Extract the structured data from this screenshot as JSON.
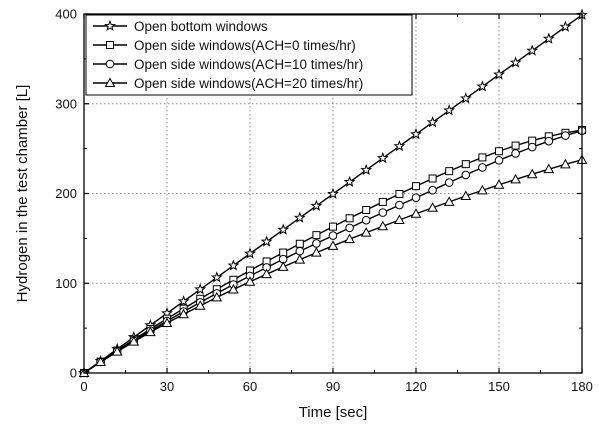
{
  "chart_data": {
    "type": "line",
    "title": "",
    "xlabel": "Time [sec]",
    "ylabel": "Hydrogen in the test chamber [L]",
    "xlim": [
      0,
      180
    ],
    "ylim": [
      0,
      400
    ],
    "xticks": [
      0,
      30,
      60,
      90,
      120,
      150,
      180
    ],
    "yticks": [
      0,
      100,
      200,
      300,
      400
    ],
    "grid": true,
    "grid_style": "dotted",
    "legend_position": "top-left",
    "x": [
      0,
      6,
      12,
      18,
      24,
      30,
      36,
      42,
      48,
      54,
      60,
      66,
      72,
      78,
      84,
      90,
      96,
      102,
      108,
      114,
      120,
      126,
      132,
      138,
      144,
      150,
      156,
      162,
      168,
      174,
      180
    ],
    "series": [
      {
        "name": "Open bottom windows",
        "marker": "star",
        "values": [
          0,
          13.3,
          26.6,
          39.9,
          53.2,
          66.5,
          79.8,
          93.1,
          106.4,
          119.7,
          133.0,
          146.3,
          159.6,
          172.9,
          186.2,
          199.5,
          212.8,
          226.1,
          239.4,
          252.7,
          266.0,
          279.3,
          292.6,
          305.9,
          319.2,
          332.5,
          345.8,
          359.1,
          372.4,
          385.7,
          399.0
        ]
      },
      {
        "name": "Open side windows(ACH=0 times/hr)",
        "marker": "square",
        "values": [
          0,
          12.7,
          25.0,
          37.1,
          49.0,
          60.5,
          71.7,
          82.7,
          93.4,
          103.9,
          114.2,
          124.3,
          134.2,
          144.0,
          153.6,
          163.1,
          172.4,
          181.6,
          190.6,
          199.5,
          208.2,
          216.7,
          224.9,
          232.7,
          240.2,
          247.1,
          253.4,
          258.9,
          263.7,
          267.6,
          270.7
        ]
      },
      {
        "name": "Open side windows(ACH=10 times/hr)",
        "marker": "circle",
        "values": [
          0,
          12.4,
          24.3,
          35.9,
          47.1,
          57.9,
          68.4,
          78.7,
          88.7,
          98.6,
          108.2,
          117.6,
          126.8,
          135.7,
          144.4,
          153.1,
          161.7,
          170.3,
          178.7,
          187.1,
          195.3,
          203.7,
          212.2,
          220.7,
          229.0,
          237.0,
          244.6,
          251.7,
          258.3,
          264.5,
          270.0
        ]
      },
      {
        "name": "Open side windows(ACH=20 times/hr)",
        "marker": "triangle",
        "values": [
          0,
          12.2,
          23.8,
          34.9,
          45.5,
          55.7,
          65.5,
          75.0,
          84.2,
          93.1,
          101.7,
          110.1,
          118.3,
          126.3,
          134.1,
          141.7,
          149.1,
          156.4,
          163.5,
          170.5,
          177.4,
          184.1,
          190.7,
          197.2,
          203.5,
          209.7,
          215.7,
          221.5,
          227.1,
          232.5,
          237.5
        ]
      }
    ]
  }
}
